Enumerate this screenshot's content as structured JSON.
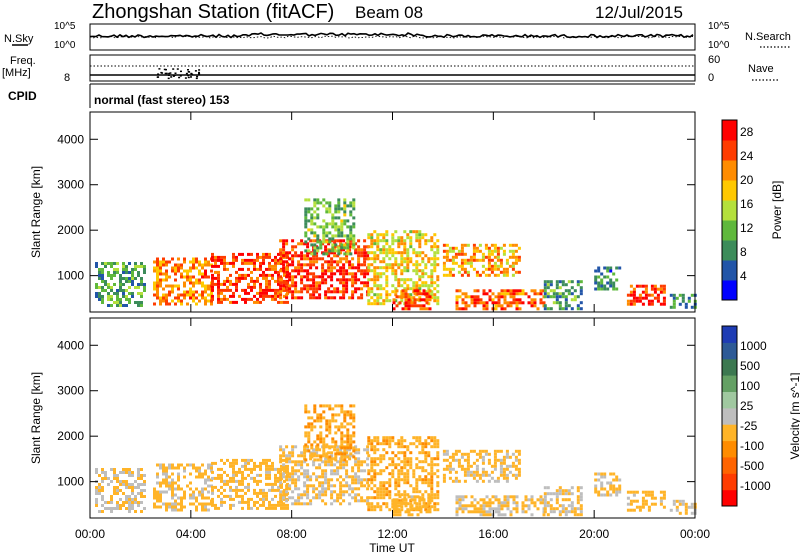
{
  "header": {
    "station": "Zhongshan Station (fitACF)",
    "beam": "Beam 08",
    "date": "12/Jul/2015"
  },
  "side_labels": {
    "nsky": "N.Sky",
    "nsky_ticks": [
      "10^5",
      "10^0"
    ],
    "nsearch": "N.Search",
    "nsearch_ticks": [
      "10^5",
      "10^0"
    ],
    "freq": "Freq.",
    "freq_unit": "[MHz]",
    "freq_tick": "8",
    "nave": "Nave",
    "nave_ticks": [
      "60",
      "0"
    ],
    "cpid": "CPID",
    "cpid_text": "normal (fast stereo) 153"
  },
  "colors": {
    "power_scale": [
      "#0000ff",
      "#2255a8",
      "#3c8c5a",
      "#5fb83c",
      "#b4e03c",
      "#ffc800",
      "#ff8c00",
      "#ff3c00",
      "#ff0000"
    ],
    "velocity_scale": [
      "#ff0000",
      "#ff3c00",
      "#ff6400",
      "#ff8c00",
      "#ffb428",
      "#bebebe",
      "#a0c8a0",
      "#64a064",
      "#3c7850",
      "#2d5a96",
      "#1e3cb4"
    ]
  },
  "chart_data": [
    {
      "type": "heatmap",
      "name": "power",
      "xlabel": "",
      "ylabel": "Slant Range [km]",
      "x_ticks": [
        "00:00",
        "04:00",
        "08:00",
        "12:00",
        "16:00",
        "20:00",
        "00:00"
      ],
      "xlim": [
        0,
        24
      ],
      "y_ticks": [
        1000,
        2000,
        3000,
        4000
      ],
      "ylim": [
        200,
        4600
      ],
      "colorbar": {
        "label": "Power [dB]",
        "ticks": [
          4,
          8,
          12,
          16,
          20,
          24,
          28
        ],
        "range": [
          0,
          30
        ]
      },
      "regions": [
        {
          "t0": 0.2,
          "t1": 2.2,
          "r0": 350,
          "r1": 1300,
          "level": 10
        },
        {
          "t0": 2.5,
          "t1": 4.8,
          "r0": 400,
          "r1": 1400,
          "level": 22
        },
        {
          "t0": 4.8,
          "t1": 7.8,
          "r0": 400,
          "r1": 1500,
          "level": 25
        },
        {
          "t0": 7.5,
          "t1": 11.0,
          "r0": 500,
          "r1": 1800,
          "level": 26
        },
        {
          "t0": 8.5,
          "t1": 10.5,
          "r0": 1500,
          "r1": 2700,
          "level": 12
        },
        {
          "t0": 11.0,
          "t1": 13.8,
          "r0": 400,
          "r1": 2000,
          "level": 18
        },
        {
          "t0": 12.0,
          "t1": 13.5,
          "r0": 300,
          "r1": 700,
          "level": 25
        },
        {
          "t0": 14.0,
          "t1": 17.0,
          "r0": 1000,
          "r1": 1700,
          "level": 20
        },
        {
          "t0": 14.5,
          "t1": 18.0,
          "r0": 300,
          "r1": 700,
          "level": 24
        },
        {
          "t0": 18.0,
          "t1": 19.5,
          "r0": 300,
          "r1": 900,
          "level": 10
        },
        {
          "t0": 20.0,
          "t1": 21.0,
          "r0": 700,
          "r1": 1200,
          "level": 8
        },
        {
          "t0": 21.3,
          "t1": 22.8,
          "r0": 350,
          "r1": 800,
          "level": 26
        },
        {
          "t0": 23.0,
          "t1": 24.0,
          "r0": 300,
          "r1": 600,
          "level": 8
        }
      ]
    },
    {
      "type": "heatmap",
      "name": "velocity",
      "xlabel": "Time UT",
      "ylabel": "Slant Range [km]",
      "x_ticks": [
        "00:00",
        "04:00",
        "08:00",
        "12:00",
        "16:00",
        "20:00",
        "00:00"
      ],
      "xlim": [
        0,
        24
      ],
      "y_ticks": [
        1000,
        2000,
        3000,
        4000
      ],
      "ylim": [
        200,
        4600
      ],
      "colorbar": {
        "label": "Velocity [m s^-1]",
        "ticks": [
          1000,
          500,
          100,
          25,
          -25,
          -100,
          -500,
          -1000
        ],
        "range": [
          -1200,
          1200
        ]
      },
      "regions": [
        {
          "t0": 0.2,
          "t1": 2.2,
          "r0": 350,
          "r1": 1300,
          "level": -100
        },
        {
          "t0": 2.5,
          "t1": 4.8,
          "r0": 400,
          "r1": 1400,
          "level": -150
        },
        {
          "t0": 4.8,
          "t1": 7.8,
          "r0": 400,
          "r1": 1500,
          "level": -200
        },
        {
          "t0": 7.5,
          "t1": 11.0,
          "r0": 500,
          "r1": 1800,
          "level": -150
        },
        {
          "t0": 8.5,
          "t1": 10.5,
          "r0": 1500,
          "r1": 2700,
          "level": -300
        },
        {
          "t0": 11.0,
          "t1": 13.8,
          "r0": 400,
          "r1": 2000,
          "level": -250
        },
        {
          "t0": 12.0,
          "t1": 13.5,
          "r0": 300,
          "r1": 700,
          "level": -200
        },
        {
          "t0": 14.0,
          "t1": 17.0,
          "r0": 1000,
          "r1": 1700,
          "level": -150
        },
        {
          "t0": 14.5,
          "t1": 18.0,
          "r0": 300,
          "r1": 700,
          "level": -120
        },
        {
          "t0": 18.0,
          "t1": 19.5,
          "r0": 300,
          "r1": 900,
          "level": -100
        },
        {
          "t0": 20.0,
          "t1": 21.0,
          "r0": 700,
          "r1": 1200,
          "level": -150
        },
        {
          "t0": 21.3,
          "t1": 22.8,
          "r0": 350,
          "r1": 800,
          "level": -200
        },
        {
          "t0": 23.0,
          "t1": 24.0,
          "r0": 300,
          "r1": 600,
          "level": -100
        }
      ]
    }
  ]
}
